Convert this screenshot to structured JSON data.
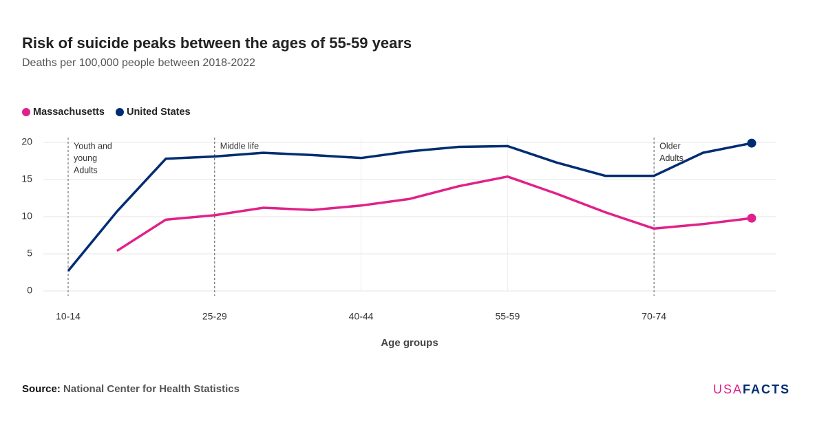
{
  "chart_data": {
    "type": "line",
    "title": "Risk of suicide peaks between the ages of 55-59 years",
    "subtitle": "Deaths per 100,000 people between 2018-2022",
    "x_label": "Age groups",
    "categories": [
      "10-14",
      null,
      null,
      "25-29",
      null,
      null,
      "40-44",
      null,
      null,
      "55-59",
      null,
      null,
      "70-74",
      null,
      null
    ],
    "series": [
      {
        "name": "Massachusetts",
        "color": "#e0218a",
        "values": [
          null,
          5.4,
          9.6,
          10.2,
          11.2,
          10.9,
          11.5,
          12.4,
          14.1,
          15.4,
          13.1,
          10.6,
          8.4,
          9.0,
          9.8
        ]
      },
      {
        "name": "United States",
        "color": "#002d72",
        "values": [
          2.7,
          10.7,
          17.8,
          18.1,
          18.6,
          18.3,
          17.9,
          18.8,
          19.4,
          19.5,
          17.3,
          15.5,
          15.5,
          18.6,
          19.9
        ]
      }
    ],
    "ylim": [
      0,
      20
    ],
    "yticks": [
      0,
      5,
      10,
      15,
      20
    ],
    "grid": true,
    "legend": "top-left",
    "annotations": [
      {
        "x": "10-14",
        "lines": [
          "Youth and",
          "young",
          "Adults"
        ]
      },
      {
        "x": "25-29",
        "lines": [
          "Middle life"
        ]
      },
      {
        "x": "70-74",
        "lines": [
          "Older",
          "Adults"
        ]
      }
    ],
    "source_label": "Source:",
    "source": "National Center for Health Statistics",
    "logo": {
      "left": "USA",
      "right": "FACTS"
    }
  }
}
